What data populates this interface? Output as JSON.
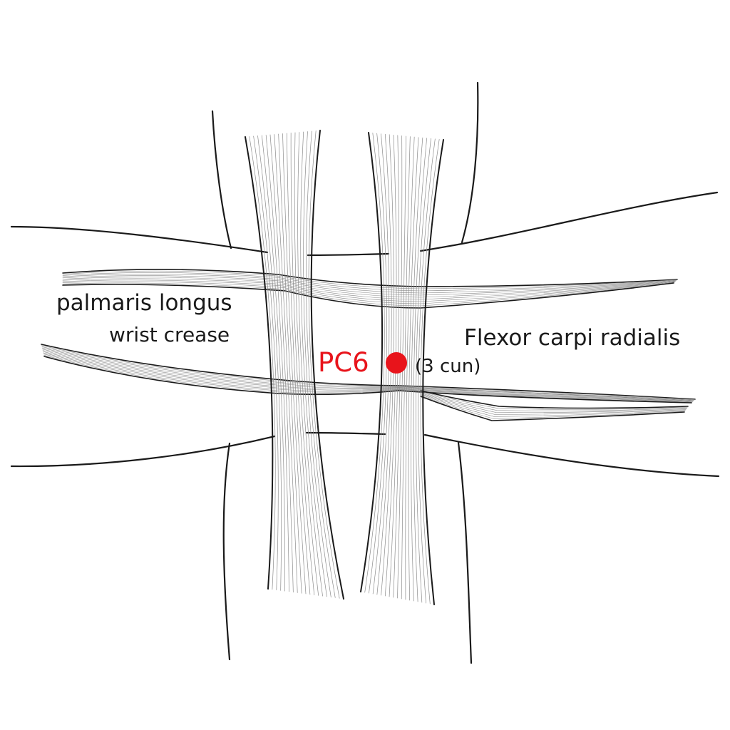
{
  "labels": {
    "palmaris": "palmaris longus",
    "crease": "wrist crease",
    "flexor": "Flexor carpi radialis",
    "point": "PC6",
    "distance": "(3 cun)"
  },
  "colors": {
    "line": "#1a1a1a",
    "fiber": "#8c8c8c",
    "point": "#e8141b"
  }
}
